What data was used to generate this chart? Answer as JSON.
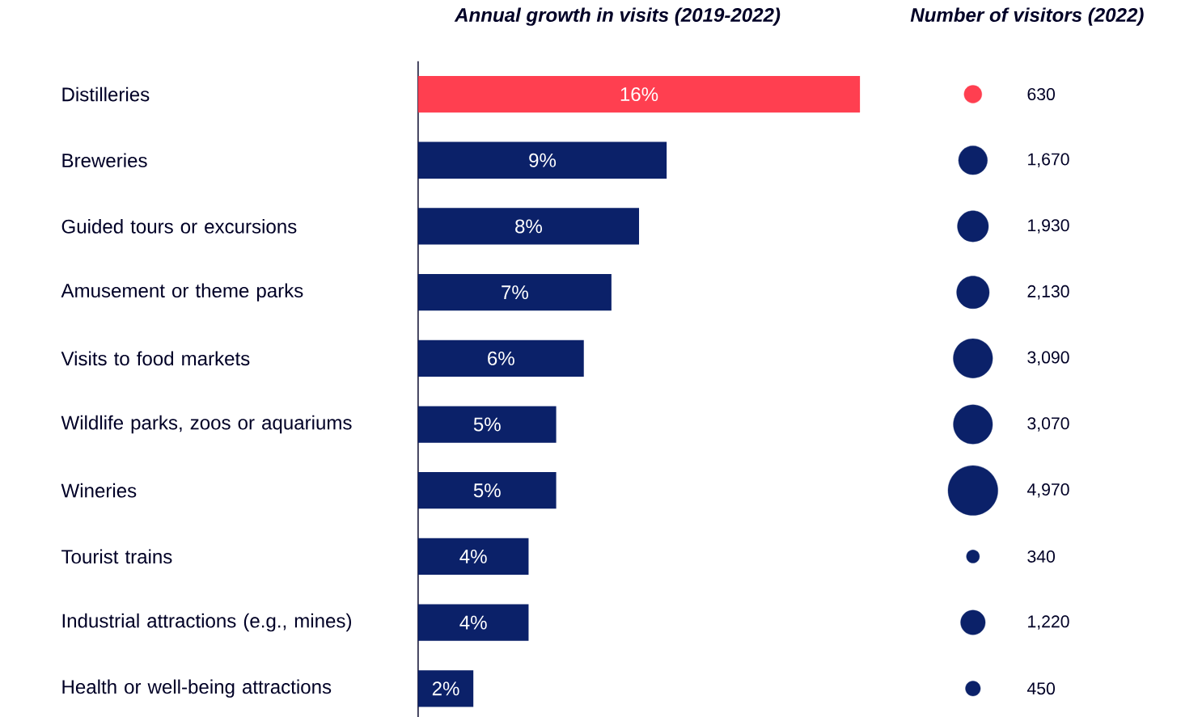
{
  "chart_data": [
    {
      "type": "bar",
      "orientation": "horizontal",
      "title": "Annual growth in visits (2019-2022)",
      "categories": [
        "Distilleries",
        "Breweries",
        "Guided tours or excursions",
        "Amusement or theme parks",
        "Visits to food markets",
        "Wildlife parks, zoos or aquariums",
        "Wineries",
        "Tourist trains",
        "Industrial attractions (e.g., mines)",
        "Health or well-being attractions"
      ],
      "values": [
        16,
        9,
        8,
        7,
        6,
        5,
        5,
        4,
        4,
        2
      ],
      "value_labels": [
        "16%",
        "9%",
        "8%",
        "7%",
        "6%",
        "5%",
        "5%",
        "4%",
        "4%",
        "2%"
      ],
      "colors": [
        "#ff3f50",
        "#0b2169",
        "#0b2169",
        "#0b2169",
        "#0b2169",
        "#0b2169",
        "#0b2169",
        "#0b2169",
        "#0b2169",
        "#0b2169"
      ]
    },
    {
      "type": "other",
      "title": "Number of visitors (2022)",
      "categories": [
        null,
        null,
        null,
        null,
        null,
        null,
        null,
        null,
        null,
        null
      ],
      "values": [
        630,
        1670,
        1930,
        2130,
        3090,
        3070,
        4970,
        340,
        1220,
        450
      ],
      "value_labels": [
        "630",
        "1,670",
        "1,930",
        "2,130",
        "3,090",
        "3,070",
        "4,970",
        "340",
        "1,220",
        "450"
      ],
      "colors": [
        "#ff3f50",
        "#0b2169",
        "#0b2169",
        "#0b2169",
        "#0b2169",
        "#0b2169",
        "#0b2169",
        "#0b2169",
        "#0b2169",
        "#0b2169"
      ]
    }
  ]
}
